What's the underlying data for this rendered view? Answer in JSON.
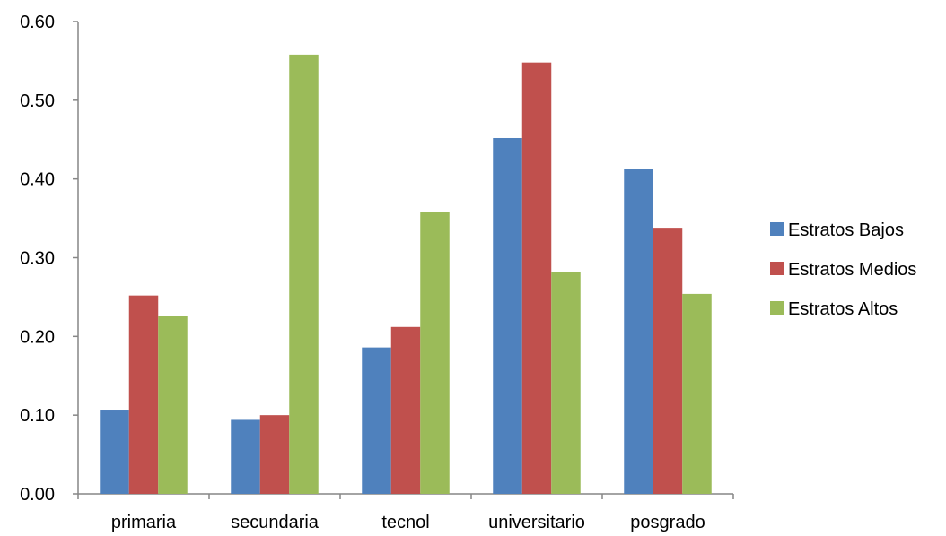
{
  "chart_data": {
    "type": "bar",
    "categories": [
      "primaria",
      "secundaria",
      "tecnol",
      "universitario",
      "posgrado"
    ],
    "series": [
      {
        "name": "Estratos Bajos",
        "color": "#4F81BD",
        "values": [
          0.107,
          0.094,
          0.186,
          0.452,
          0.413
        ]
      },
      {
        "name": "Estratos Medios",
        "color": "#C0504D",
        "values": [
          0.252,
          0.1,
          0.212,
          0.548,
          0.338
        ]
      },
      {
        "name": "Estratos Altos",
        "color": "#9BBB59",
        "values": [
          0.226,
          0.558,
          0.358,
          0.282,
          0.254
        ]
      }
    ],
    "ylim": [
      0,
      0.6
    ],
    "yticks": [
      "0.00",
      "0.10",
      "0.20",
      "0.30",
      "0.40",
      "0.50",
      "0.60"
    ],
    "grid": false,
    "legend_position": "right"
  }
}
